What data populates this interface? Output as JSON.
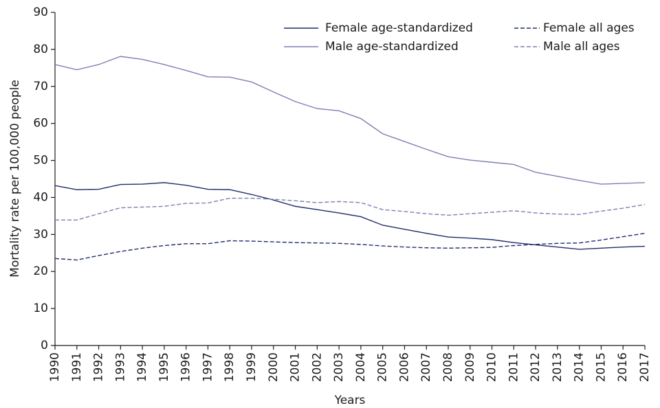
{
  "chart_data": {
    "type": "line",
    "xlabel": "Years",
    "ylabel": "Mortality rate per 100,000 people",
    "x": [
      1990,
      1991,
      1992,
      1993,
      1994,
      1995,
      1996,
      1997,
      1998,
      1999,
      2000,
      2001,
      2002,
      2003,
      2004,
      2005,
      2006,
      2007,
      2008,
      2009,
      2010,
      2011,
      2012,
      2013,
      2014,
      2015,
      2016,
      2017
    ],
    "xlim": [
      1990,
      2017
    ],
    "xticks": [
      1990,
      1991,
      1992,
      1993,
      1994,
      1995,
      1996,
      1997,
      1998,
      1999,
      2000,
      2001,
      2002,
      2003,
      2004,
      2005,
      2006,
      2007,
      2008,
      2009,
      2010,
      2011,
      2012,
      2013,
      2014,
      2015,
      2016,
      2017
    ],
    "ylim": [
      0,
      90
    ],
    "yticks": [
      0,
      10,
      20,
      30,
      40,
      50,
      60,
      70,
      80,
      90
    ],
    "legend": "top-right",
    "series": [
      {
        "name": "Female age-standardized",
        "color": "#1f2a6b",
        "dashed": false,
        "values": [
          43.2,
          42.1,
          42.2,
          43.5,
          43.6,
          44.0,
          43.3,
          42.2,
          42.1,
          40.8,
          39.3,
          37.6,
          36.7,
          35.8,
          34.8,
          32.5,
          31.4,
          30.3,
          29.3,
          29.0,
          28.6,
          27.8,
          27.2,
          26.6,
          26.0,
          26.3,
          26.6,
          26.8
        ]
      },
      {
        "name": "Male age-standardized",
        "color": "#7b7fb0",
        "dashed": false,
        "values": [
          75.9,
          74.5,
          75.9,
          78.1,
          77.3,
          75.9,
          74.3,
          72.6,
          72.5,
          71.2,
          68.5,
          65.9,
          64.0,
          63.4,
          61.3,
          57.2,
          55.1,
          53.0,
          51.0,
          50.1,
          49.5,
          48.9,
          46.8,
          45.7,
          44.6,
          43.6,
          43.8,
          44.0
        ]
      },
      {
        "name": "Female all ages",
        "color": "#1f2a6b",
        "dashed": true,
        "values": [
          23.5,
          23.1,
          24.3,
          25.4,
          26.3,
          27.0,
          27.5,
          27.5,
          28.3,
          28.2,
          28.0,
          27.8,
          27.7,
          27.6,
          27.3,
          26.9,
          26.6,
          26.4,
          26.3,
          26.4,
          26.5,
          27.0,
          27.3,
          27.6,
          27.7,
          28.5,
          29.4,
          30.3
        ]
      },
      {
        "name": "Male all ages",
        "color": "#7b7fb0",
        "dashed": true,
        "values": [
          33.9,
          33.9,
          35.6,
          37.2,
          37.4,
          37.6,
          38.4,
          38.5,
          39.8,
          39.8,
          39.5,
          39.1,
          38.6,
          38.9,
          38.6,
          36.7,
          36.2,
          35.6,
          35.2,
          35.6,
          36.0,
          36.4,
          35.8,
          35.5,
          35.4,
          36.3,
          37.1,
          38.1
        ]
      }
    ]
  }
}
